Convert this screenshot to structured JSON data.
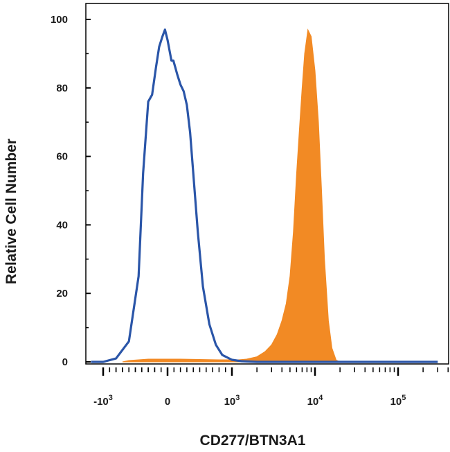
{
  "chart_data": {
    "type": "area",
    "xlabel": "CD277/BTN3A1",
    "ylabel": "Relative Cell Number",
    "x_scale": "biexponential",
    "ylim": [
      0,
      100
    ],
    "grid": false,
    "y_ticks": [
      {
        "value": 0,
        "label": "0"
      },
      {
        "value": 20,
        "label": "20"
      },
      {
        "value": 40,
        "label": "40"
      },
      {
        "value": 60,
        "label": "60"
      },
      {
        "value": 80,
        "label": "80"
      },
      {
        "value": 100,
        "label": "100"
      }
    ],
    "x_ticks": [
      {
        "value": -1000,
        "base": "-10",
        "exp": "3"
      },
      {
        "value": 0,
        "base": "0",
        "exp": ""
      },
      {
        "value": 1000,
        "base": "10",
        "exp": "3"
      },
      {
        "value": 10000,
        "base": "10",
        "exp": "4"
      },
      {
        "value": 100000,
        "base": "10",
        "exp": "5"
      }
    ],
    "series": [
      {
        "style": "outline",
        "color": "#2a55a8",
        "points": [
          [
            -1400,
            0
          ],
          [
            -1000,
            0
          ],
          [
            -800,
            1
          ],
          [
            -600,
            6
          ],
          [
            -450,
            25
          ],
          [
            -380,
            55
          ],
          [
            -300,
            76
          ],
          [
            -240,
            78
          ],
          [
            -180,
            86
          ],
          [
            -130,
            92
          ],
          [
            -80,
            95
          ],
          [
            -40,
            97
          ],
          [
            0,
            94
          ],
          [
            30,
            91
          ],
          [
            60,
            88
          ],
          [
            90,
            88
          ],
          [
            120,
            86
          ],
          [
            150,
            84
          ],
          [
            200,
            81
          ],
          [
            250,
            79
          ],
          [
            300,
            75
          ],
          [
            350,
            67
          ],
          [
            400,
            55
          ],
          [
            470,
            38
          ],
          [
            550,
            22
          ],
          [
            650,
            11
          ],
          [
            750,
            5
          ],
          [
            850,
            2
          ],
          [
            1000,
            0.6
          ],
          [
            1300,
            0.2
          ],
          [
            2000,
            0
          ],
          [
            100000,
            0
          ],
          [
            300000,
            0
          ]
        ]
      },
      {
        "style": "filled",
        "color": "#f28a24",
        "points": [
          [
            -700,
            0
          ],
          [
            -600,
            0.4
          ],
          [
            -300,
            0.8
          ],
          [
            200,
            0.8
          ],
          [
            800,
            0.6
          ],
          [
            1200,
            0.6
          ],
          [
            1500,
            0.8
          ],
          [
            2000,
            1.5
          ],
          [
            2500,
            3
          ],
          [
            3000,
            5
          ],
          [
            3500,
            8
          ],
          [
            4000,
            12
          ],
          [
            4500,
            17
          ],
          [
            5000,
            25
          ],
          [
            5500,
            38
          ],
          [
            6000,
            55
          ],
          [
            6500,
            68
          ],
          [
            7000,
            80
          ],
          [
            7500,
            90
          ],
          [
            8200,
            97
          ],
          [
            9000,
            95
          ],
          [
            10000,
            85
          ],
          [
            11000,
            70
          ],
          [
            12000,
            50
          ],
          [
            13000,
            30
          ],
          [
            14500,
            12
          ],
          [
            16000,
            4
          ],
          [
            18000,
            0.5
          ],
          [
            20000,
            0
          ]
        ]
      }
    ]
  }
}
